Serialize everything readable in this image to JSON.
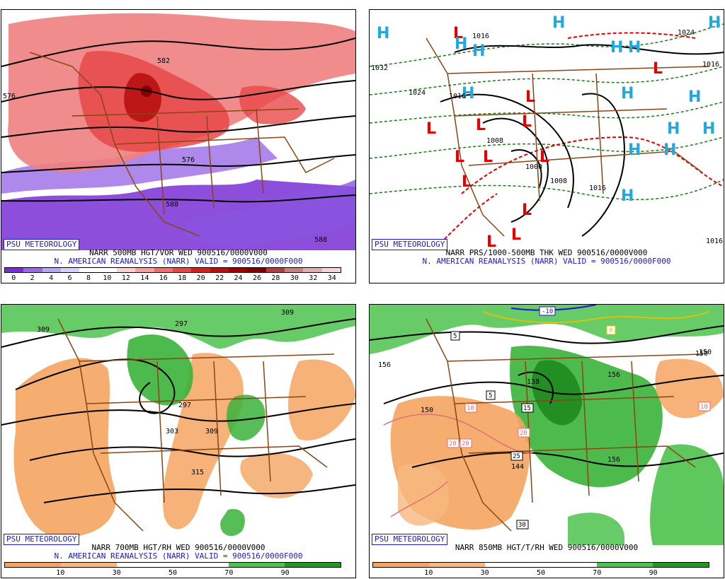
{
  "badge": "PSU METEOROLOGY",
  "panels": [
    {
      "id": "p1",
      "title1": "NARR 500MB HGT/VOR WED 900516/0000V000",
      "title2": "N. AMERICAN REANALYSIS (NARR) VALID = 900516/0000F000",
      "colorbar": {
        "colors": [
          "#7a2fd6",
          "#9a6ae6",
          "#b9a6f0",
          "#d8d0f8",
          "#ffffff",
          "#ffffff",
          "#fbd0d0",
          "#f7a0a0",
          "#f07070",
          "#e84848",
          "#d42020",
          "#b81010",
          "#9c0000",
          "#800000",
          "#b04040",
          "#c88080",
          "#e0b0b0",
          "#f2d8d8"
        ],
        "ticks": [
          "0",
          "2",
          "4",
          "6",
          "8",
          "10",
          "12",
          "14",
          "16",
          "18",
          "20",
          "22",
          "24",
          "26",
          "28",
          "30",
          "32",
          "34"
        ]
      },
      "labels": [
        "576",
        "582",
        "576",
        "588",
        "588",
        "576",
        "588"
      ]
    },
    {
      "id": "p2",
      "title1": "NARR PRS/1000-500MB THK WED 900516/0000V000",
      "title2": "N. AMERICAN REANALYSIS (NARR) VALID = 900516/0000F000",
      "labels": [
        "1032",
        "1024",
        "1016",
        "1016",
        "1008",
        "1000",
        "1008",
        "1016",
        "1024",
        "1016",
        "1016"
      ]
    },
    {
      "id": "p3",
      "title1": "NARR 700MB HGT/RH WED 900516/0000V000",
      "title2": "N. AMERICAN REANALYSIS (NARR) VALID = 900516/0000F000",
      "colorbar": {
        "colors": [
          "#f4a460",
          "#f6b880",
          "#ffffff",
          "#ffffff",
          "#4cc24c",
          "#1f9a1f"
        ],
        "ticks": [
          "10",
          "30",
          "50",
          "70",
          "90"
        ]
      },
      "labels": [
        "309",
        "297",
        "303",
        "303",
        "309",
        "315",
        "309"
      ]
    },
    {
      "id": "p4",
      "title1": "NARR 850MB HGT/T/RH WED 900516/0000V000",
      "title2": "",
      "colorbar": {
        "colors": [
          "#f4a460",
          "#f6b880",
          "#ffffff",
          "#ffffff",
          "#4cc24c",
          "#1f9a1f"
        ],
        "ticks": [
          "10",
          "30",
          "50",
          "70",
          "90"
        ]
      },
      "labels": [
        "156",
        "150",
        "150",
        "138",
        "156",
        "144",
        "150",
        "156"
      ],
      "temp_labels": [
        "-10",
        "0",
        "5",
        "5",
        "10",
        "15",
        "20",
        "20",
        "20",
        "25",
        "30",
        "10"
      ]
    }
  ],
  "colors": {
    "brown_borders": "#8b4513",
    "blue_text": "#1a1acc",
    "low_marker": "#e60000",
    "high_marker": "#22a8e0"
  },
  "markers": {
    "high": "H",
    "low": "L"
  }
}
